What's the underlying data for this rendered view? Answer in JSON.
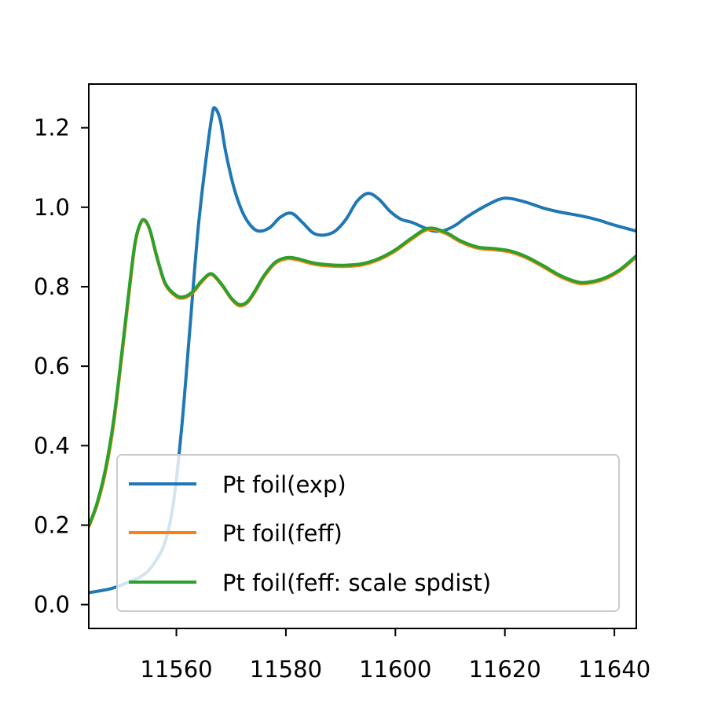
{
  "chart_data": {
    "type": "line",
    "title": "",
    "xlabel": "",
    "ylabel": "",
    "xlim": [
      11544,
      11644
    ],
    "ylim": [
      -0.06,
      1.31
    ],
    "x_ticks": [
      11560,
      11580,
      11600,
      11620,
      11640
    ],
    "y_ticks": [
      0.0,
      0.2,
      0.4,
      0.6,
      0.8,
      1.0,
      1.2
    ],
    "x_tick_labels": [
      "11560",
      "11580",
      "11600",
      "11620",
      "11640"
    ],
    "y_tick_labels": [
      "0.0",
      "0.2",
      "0.4",
      "0.6",
      "0.8",
      "1.0",
      "1.2"
    ],
    "grid": false,
    "legend_position": "lower-right",
    "series": [
      {
        "name": "Pt foil(exp)",
        "color": "#1f77b4",
        "points": [
          [
            11544,
            0.03
          ],
          [
            11548,
            0.04
          ],
          [
            11551,
            0.055
          ],
          [
            11554,
            0.075
          ],
          [
            11556,
            0.105
          ],
          [
            11558,
            0.16
          ],
          [
            11559.5,
            0.26
          ],
          [
            11561,
            0.45
          ],
          [
            11562.5,
            0.7
          ],
          [
            11564,
            0.95
          ],
          [
            11565.5,
            1.13
          ],
          [
            11566.5,
            1.23
          ],
          [
            11567,
            1.25
          ],
          [
            11568,
            1.22
          ],
          [
            11569,
            1.14
          ],
          [
            11570.5,
            1.05
          ],
          [
            11572,
            0.99
          ],
          [
            11573.5,
            0.955
          ],
          [
            11575,
            0.94
          ],
          [
            11577,
            0.948
          ],
          [
            11579,
            0.975
          ],
          [
            11581,
            0.985
          ],
          [
            11583,
            0.962
          ],
          [
            11585,
            0.935
          ],
          [
            11587,
            0.93
          ],
          [
            11589,
            0.94
          ],
          [
            11591,
            0.97
          ],
          [
            11593,
            1.015
          ],
          [
            11595,
            1.035
          ],
          [
            11597,
            1.02
          ],
          [
            11599,
            0.99
          ],
          [
            11601,
            0.97
          ],
          [
            11603,
            0.962
          ],
          [
            11605,
            0.95
          ],
          [
            11607,
            0.94
          ],
          [
            11609,
            0.942
          ],
          [
            11611,
            0.955
          ],
          [
            11613,
            0.975
          ],
          [
            11616,
            1.0
          ],
          [
            11619,
            1.02
          ],
          [
            11621,
            1.022
          ],
          [
            11624,
            1.012
          ],
          [
            11627,
            0.998
          ],
          [
            11630,
            0.988
          ],
          [
            11634,
            0.978
          ],
          [
            11637,
            0.968
          ],
          [
            11640,
            0.955
          ],
          [
            11644,
            0.94
          ]
        ]
      },
      {
        "name": "Pt foil(feff)",
        "color": "#ff7f0e",
        "points": [
          [
            11544,
            0.195
          ],
          [
            11545.5,
            0.25
          ],
          [
            11547,
            0.33
          ],
          [
            11548.5,
            0.45
          ],
          [
            11550,
            0.62
          ],
          [
            11551.5,
            0.8
          ],
          [
            11552.5,
            0.91
          ],
          [
            11553.5,
            0.96
          ],
          [
            11554.3,
            0.965
          ],
          [
            11555.2,
            0.94
          ],
          [
            11556.5,
            0.87
          ],
          [
            11558,
            0.805
          ],
          [
            11560,
            0.775
          ],
          [
            11561.5,
            0.772
          ],
          [
            11563,
            0.785
          ],
          [
            11564.5,
            0.81
          ],
          [
            11566,
            0.83
          ],
          [
            11567,
            0.825
          ],
          [
            11568.5,
            0.8
          ],
          [
            11570,
            0.77
          ],
          [
            11571.5,
            0.752
          ],
          [
            11573,
            0.76
          ],
          [
            11574.5,
            0.79
          ],
          [
            11576,
            0.825
          ],
          [
            11578,
            0.858
          ],
          [
            11580,
            0.87
          ],
          [
            11582,
            0.868
          ],
          [
            11585,
            0.857
          ],
          [
            11588,
            0.852
          ],
          [
            11591,
            0.851
          ],
          [
            11594,
            0.855
          ],
          [
            11597,
            0.868
          ],
          [
            11600,
            0.89
          ],
          [
            11603,
            0.92
          ],
          [
            11606,
            0.944
          ],
          [
            11609,
            0.935
          ],
          [
            11612,
            0.912
          ],
          [
            11615,
            0.897
          ],
          [
            11618,
            0.893
          ],
          [
            11621,
            0.887
          ],
          [
            11624,
            0.872
          ],
          [
            11627,
            0.85
          ],
          [
            11630,
            0.826
          ],
          [
            11633,
            0.81
          ],
          [
            11635,
            0.808
          ],
          [
            11638,
            0.818
          ],
          [
            11641,
            0.84
          ],
          [
            11644,
            0.875
          ]
        ]
      },
      {
        "name": "Pt foil(feff: scale spdist)",
        "color": "#2ca02c",
        "points": [
          [
            11544,
            0.198
          ],
          [
            11545.5,
            0.255
          ],
          [
            11547,
            0.338
          ],
          [
            11548.5,
            0.46
          ],
          [
            11550,
            0.63
          ],
          [
            11551.5,
            0.81
          ],
          [
            11552.5,
            0.915
          ],
          [
            11553.5,
            0.962
          ],
          [
            11554.3,
            0.967
          ],
          [
            11555.2,
            0.942
          ],
          [
            11556.5,
            0.873
          ],
          [
            11558,
            0.808
          ],
          [
            11560,
            0.778
          ],
          [
            11561.5,
            0.775
          ],
          [
            11563,
            0.788
          ],
          [
            11564.5,
            0.813
          ],
          [
            11566,
            0.832
          ],
          [
            11567,
            0.827
          ],
          [
            11568.5,
            0.802
          ],
          [
            11570,
            0.772
          ],
          [
            11571.5,
            0.755
          ],
          [
            11573,
            0.763
          ],
          [
            11574.5,
            0.793
          ],
          [
            11576,
            0.828
          ],
          [
            11578,
            0.861
          ],
          [
            11580,
            0.873
          ],
          [
            11582,
            0.871
          ],
          [
            11585,
            0.86
          ],
          [
            11588,
            0.855
          ],
          [
            11591,
            0.854
          ],
          [
            11594,
            0.858
          ],
          [
            11597,
            0.871
          ],
          [
            11600,
            0.893
          ],
          [
            11603,
            0.923
          ],
          [
            11606,
            0.947
          ],
          [
            11609,
            0.938
          ],
          [
            11612,
            0.915
          ],
          [
            11615,
            0.9
          ],
          [
            11618,
            0.896
          ],
          [
            11621,
            0.89
          ],
          [
            11624,
            0.875
          ],
          [
            11627,
            0.853
          ],
          [
            11630,
            0.829
          ],
          [
            11633,
            0.813
          ],
          [
            11635,
            0.811
          ],
          [
            11638,
            0.821
          ],
          [
            11641,
            0.843
          ],
          [
            11644,
            0.878
          ]
        ]
      }
    ]
  }
}
